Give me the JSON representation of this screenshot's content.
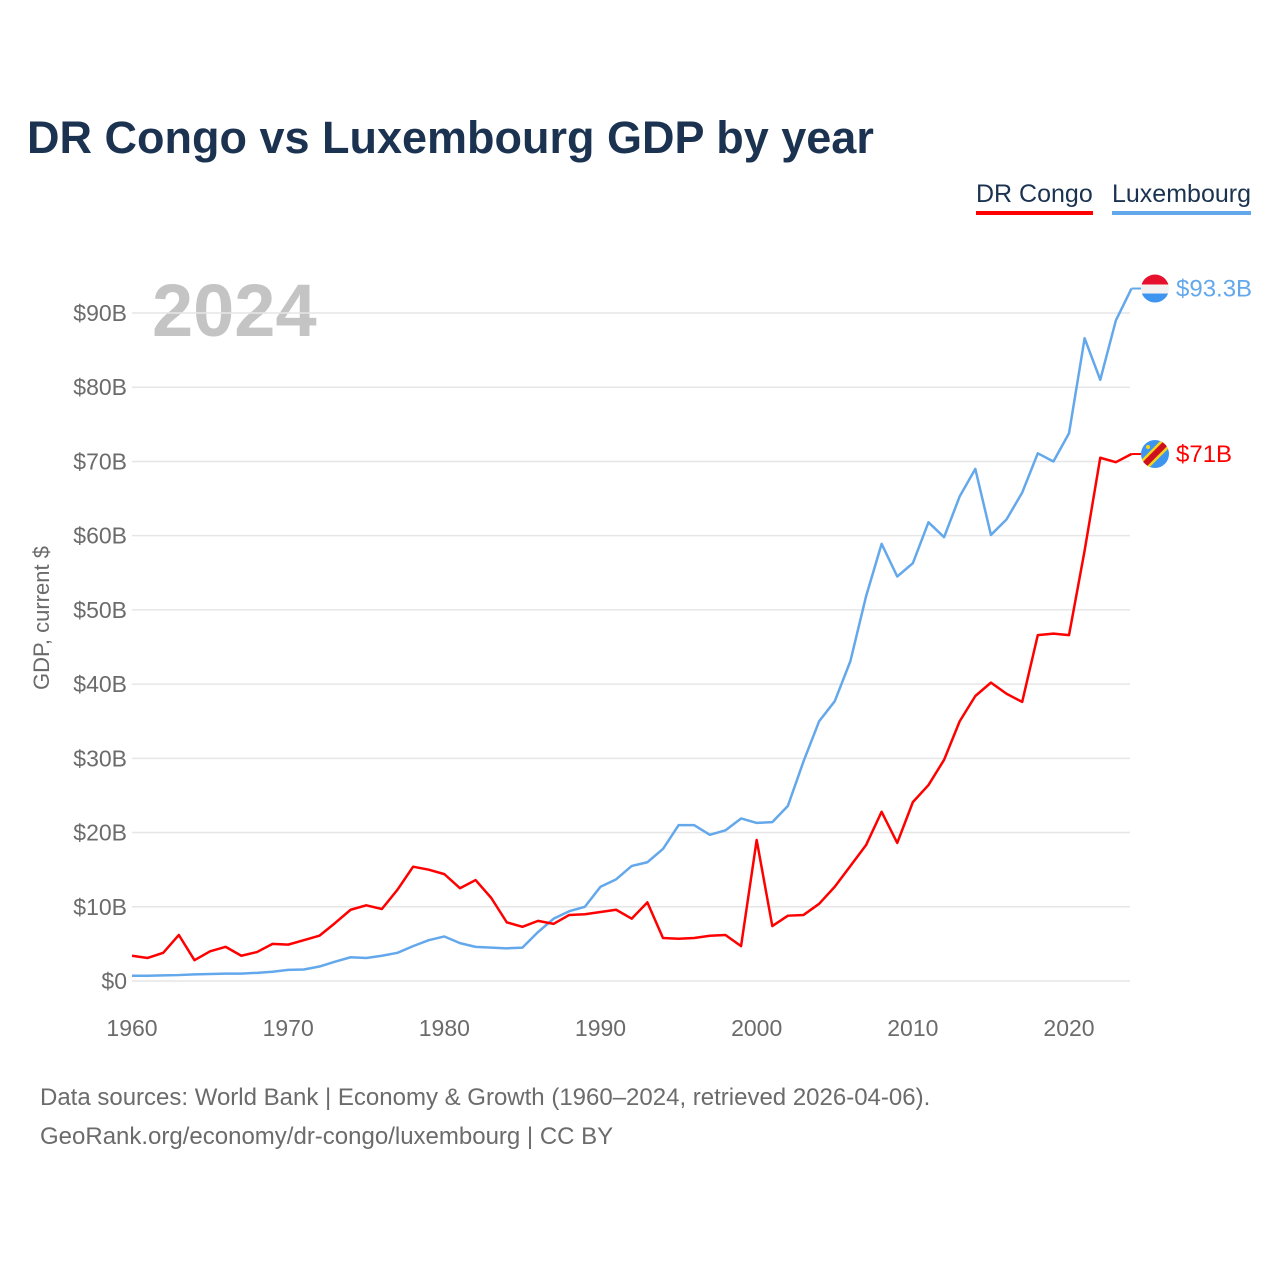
{
  "chart_data": {
    "type": "line",
    "title": "DR Congo vs Luxembourg GDP by year",
    "ylabel": "GDP, current $",
    "xlabel": "",
    "current_year_label": "2024",
    "x": [
      1960,
      1961,
      1962,
      1963,
      1964,
      1965,
      1966,
      1967,
      1968,
      1969,
      1970,
      1971,
      1972,
      1973,
      1974,
      1975,
      1976,
      1977,
      1978,
      1979,
      1980,
      1981,
      1982,
      1983,
      1984,
      1985,
      1986,
      1987,
      1988,
      1989,
      1990,
      1991,
      1992,
      1993,
      1994,
      1995,
      1996,
      1997,
      1998,
      1999,
      2000,
      2001,
      2002,
      2003,
      2004,
      2005,
      2006,
      2007,
      2008,
      2009,
      2010,
      2011,
      2012,
      2013,
      2014,
      2015,
      2016,
      2017,
      2018,
      2019,
      2020,
      2021,
      2022,
      2023,
      2024
    ],
    "series": [
      {
        "name": "DR Congo",
        "color": "#ff0000",
        "end_label": "$71B",
        "flag": "dr-congo-flag",
        "values": [
          3.4,
          3.1,
          3.8,
          6.2,
          2.8,
          4.0,
          4.6,
          3.4,
          3.9,
          5.0,
          4.9,
          5.5,
          6.1,
          7.8,
          9.6,
          10.2,
          9.7,
          12.3,
          15.4,
          15.0,
          14.4,
          12.5,
          13.6,
          11.2,
          7.9,
          7.3,
          8.1,
          7.7,
          8.9,
          9.0,
          9.3,
          9.6,
          8.4,
          10.6,
          5.8,
          5.7,
          5.8,
          6.1,
          6.2,
          4.7,
          19.0,
          7.4,
          8.8,
          8.9,
          10.4,
          12.7,
          15.5,
          18.3,
          22.8,
          18.6,
          24.1,
          26.4,
          29.8,
          35.0,
          38.4,
          40.2,
          38.7,
          37.6,
          46.6,
          46.8,
          46.6,
          58.0,
          70.5,
          69.9,
          71.0
        ]
      },
      {
        "name": "Luxembourg",
        "color": "#64a8ec",
        "end_label": "$93.3B",
        "flag": "luxembourg-flag",
        "values": [
          0.7,
          0.7,
          0.75,
          0.8,
          0.9,
          0.95,
          1.0,
          1.0,
          1.1,
          1.25,
          1.5,
          1.55,
          1.95,
          2.6,
          3.2,
          3.1,
          3.4,
          3.8,
          4.7,
          5.5,
          6.0,
          5.1,
          4.6,
          4.5,
          4.4,
          4.5,
          6.6,
          8.4,
          9.4,
          10.0,
          12.7,
          13.7,
          15.5,
          16.0,
          17.8,
          21.0,
          21.0,
          19.7,
          20.3,
          21.9,
          21.3,
          21.4,
          23.6,
          29.6,
          35.0,
          37.7,
          43.1,
          51.8,
          58.9,
          54.5,
          56.3,
          61.8,
          59.8,
          65.3,
          69.0,
          60.1,
          62.2,
          65.8,
          71.1,
          70.0,
          73.8,
          86.6,
          81.0,
          89.0,
          93.3
        ]
      }
    ],
    "unit": "billion USD",
    "ylim": [
      0,
      95
    ],
    "xlim": [
      1960,
      2024
    ],
    "y_ticks": [
      0,
      10,
      20,
      30,
      40,
      50,
      60,
      70,
      80,
      90
    ],
    "y_tick_labels": [
      "$0",
      "$10B",
      "$20B",
      "$30B",
      "$40B",
      "$50B",
      "$60B",
      "$70B",
      "$80B",
      "$90B"
    ],
    "x_ticks": [
      1960,
      1970,
      1980,
      1990,
      2000,
      2010,
      2020
    ],
    "x_tick_labels": [
      "1960",
      "1970",
      "1980",
      "1990",
      "2000",
      "2010",
      "2020"
    ],
    "grid": true,
    "legend_placement": "top-right"
  },
  "footer": {
    "line1": "Data sources: World Bank | Economy & Growth (1960–2024, retrieved 2026-04-06).",
    "line2": "GeoRank.org/economy/dr-congo/luxembourg | CC BY"
  }
}
